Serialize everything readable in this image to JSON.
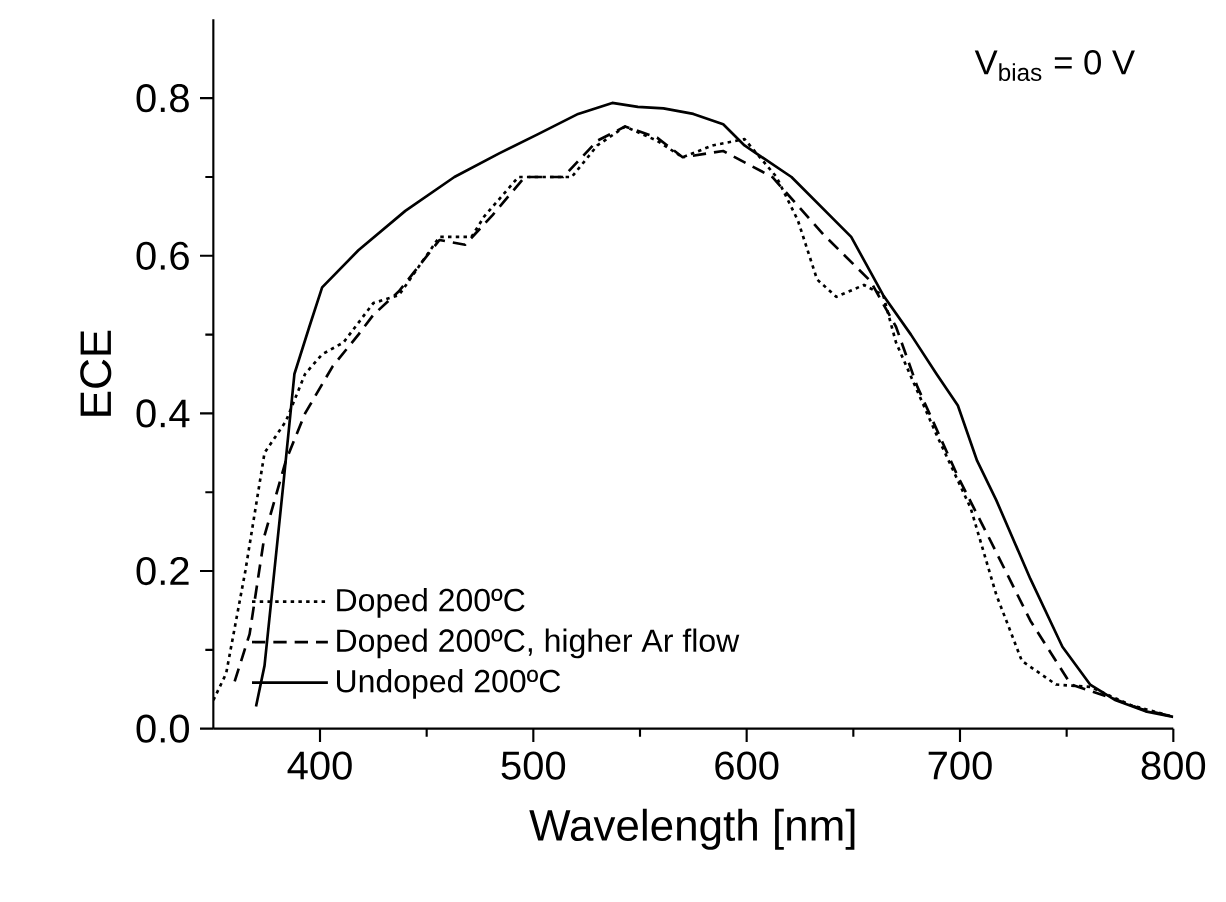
{
  "chart_data": {
    "type": "line",
    "xlabel": "Wavelength [nm]",
    "ylabel": "ECE",
    "xlim": [
      350,
      800
    ],
    "ylim": [
      0,
      0.9
    ],
    "xticks": [
      400,
      500,
      600,
      700,
      800
    ],
    "yticks": [
      {
        "value": 0,
        "label": "0.0"
      },
      0.2,
      0.4,
      0.6,
      0.8
    ],
    "legend": "bottom left",
    "annotations": [
      "V$_{bias}$ = 0 V"
    ],
    "series": [
      {
        "name": "Doped 200ºC",
        "color": "#000000",
        "line_style": "dotted",
        "x": [
          350,
          356,
          365,
          374,
          384,
          393,
          401,
          411,
          425,
          437,
          456,
          471,
          477,
          493,
          505,
          518,
          530,
          543,
          558,
          570,
          584,
          599,
          614,
          624,
          633,
          642,
          655,
          664,
          670,
          689,
          705,
          717,
          729,
          745,
          761,
          780,
          800
        ],
        "values": [
          0.036,
          0.07,
          0.2,
          0.35,
          0.39,
          0.45,
          0.475,
          0.49,
          0.54,
          0.55,
          0.624,
          0.624,
          0.65,
          0.7,
          0.7,
          0.7,
          0.74,
          0.764,
          0.746,
          0.725,
          0.74,
          0.748,
          0.7,
          0.645,
          0.57,
          0.548,
          0.563,
          0.55,
          0.49,
          0.373,
          0.28,
          0.17,
          0.086,
          0.056,
          0.053,
          0.03,
          0.015
        ]
      },
      {
        "name": "Doped 200ºC, higher Ar flow",
        "color": "#000000",
        "line_style": "dashed",
        "x": [
          360,
          367,
          374,
          384,
          393,
          406,
          418,
          425,
          437,
          456,
          468,
          481,
          496,
          514,
          530,
          543,
          558,
          570,
          589,
          612,
          636,
          658,
          670,
          680,
          699,
          714,
          733,
          752,
          770,
          785,
          800
        ],
        "values": [
          0.06,
          0.12,
          0.245,
          0.34,
          0.4,
          0.46,
          0.5,
          0.525,
          0.555,
          0.62,
          0.614,
          0.652,
          0.7,
          0.7,
          0.746,
          0.764,
          0.75,
          0.725,
          0.733,
          0.7,
          0.627,
          0.568,
          0.51,
          0.434,
          0.32,
          0.24,
          0.137,
          0.056,
          0.04,
          0.025,
          0.015
        ]
      },
      {
        "name": "Undoped 200ºC",
        "color": "#000000",
        "line_style": "solid",
        "x": [
          370,
          374,
          383,
          388,
          395,
          401,
          418,
          440,
          463,
          484,
          502,
          521,
          537,
          549,
          561,
          575,
          589,
          599,
          621,
          649,
          664,
          677,
          689,
          699,
          708,
          717,
          733,
          748,
          761,
          773,
          787,
          800
        ],
        "values": [
          0.028,
          0.08,
          0.315,
          0.45,
          0.51,
          0.56,
          0.607,
          0.657,
          0.7,
          0.73,
          0.754,
          0.78,
          0.794,
          0.789,
          0.787,
          0.78,
          0.767,
          0.74,
          0.7,
          0.624,
          0.55,
          0.5,
          0.45,
          0.41,
          0.34,
          0.29,
          0.19,
          0.104,
          0.056,
          0.036,
          0.022,
          0.015
        ]
      }
    ]
  }
}
